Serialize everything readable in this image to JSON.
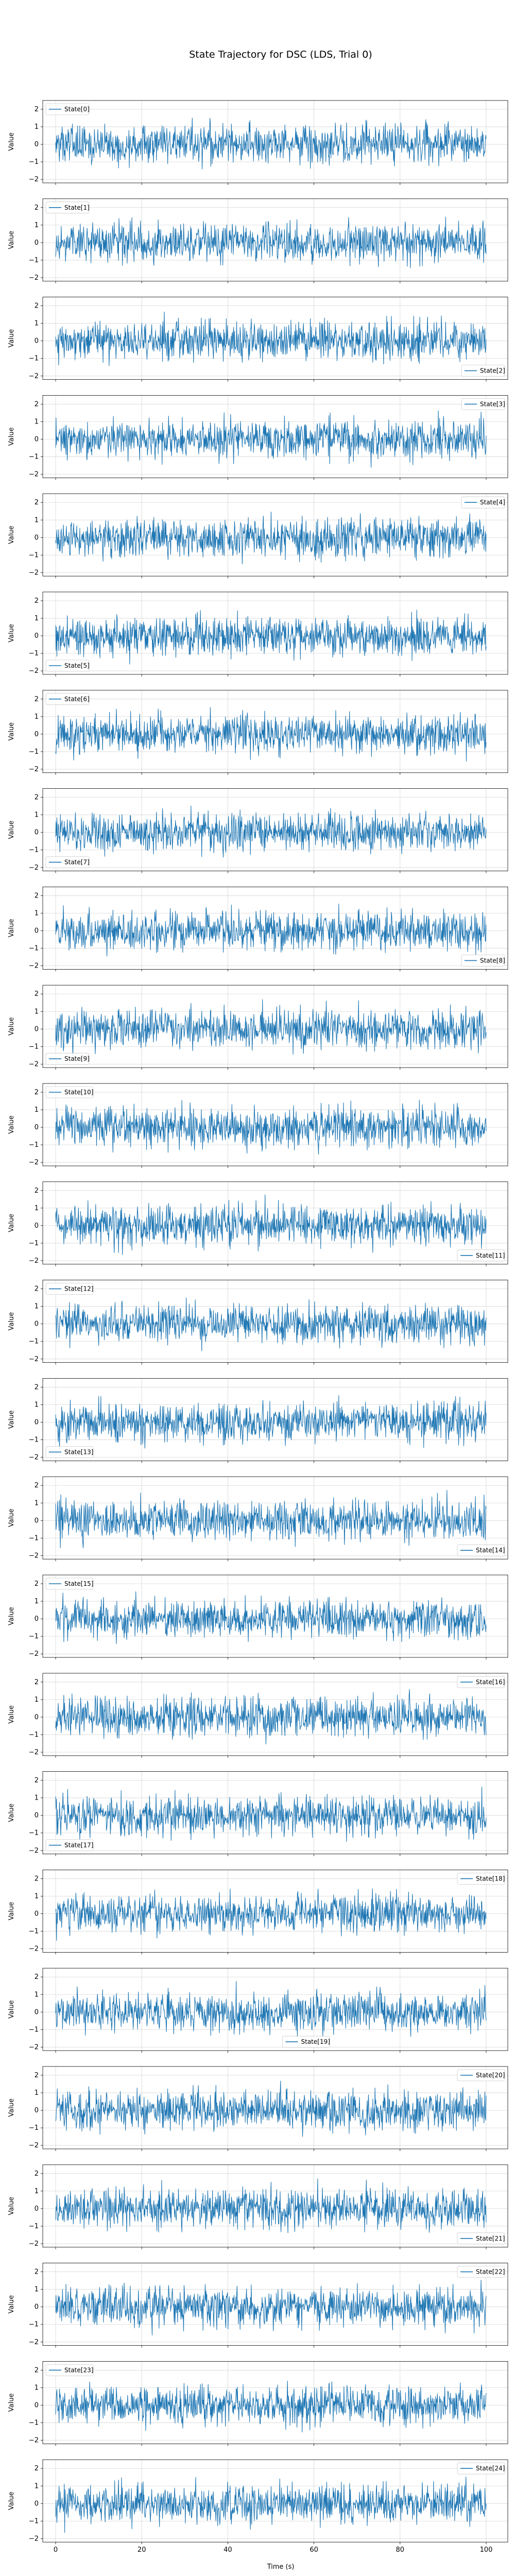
{
  "title": "State Trajectory for DSC (LDS, Trial 0)",
  "chart_data": {
    "type": "line",
    "layout": "25 vertically stacked subplots sharing the x-axis",
    "xlabel": "Time (s)",
    "ylabel": "Value",
    "xlim": [
      0,
      100
    ],
    "ylim": [
      -2.2,
      2.5
    ],
    "x_ticks": [
      0,
      20,
      40,
      60,
      80,
      100
    ],
    "y_ticks": [
      -2,
      -1,
      0,
      1,
      2
    ],
    "grid": true,
    "line_color": "#1f77b4",
    "samples_per_series": 1000,
    "series_description": "dense zero-mean noise, standard deviation about 0.55, spanning roughly -2 to 2",
    "series": [
      {
        "name": "State[0]",
        "legend_loc": "upper left"
      },
      {
        "name": "State[1]",
        "legend_loc": "upper left"
      },
      {
        "name": "State[2]",
        "legend_loc": "lower right"
      },
      {
        "name": "State[3]",
        "legend_loc": "upper right"
      },
      {
        "name": "State[4]",
        "legend_loc": "upper right"
      },
      {
        "name": "State[5]",
        "legend_loc": "lower left"
      },
      {
        "name": "State[6]",
        "legend_loc": "upper left"
      },
      {
        "name": "State[7]",
        "legend_loc": "lower left"
      },
      {
        "name": "State[8]",
        "legend_loc": "lower right"
      },
      {
        "name": "State[9]",
        "legend_loc": "lower left"
      },
      {
        "name": "State[10]",
        "legend_loc": "upper left"
      },
      {
        "name": "State[11]",
        "legend_loc": "lower right"
      },
      {
        "name": "State[12]",
        "legend_loc": "upper left"
      },
      {
        "name": "State[13]",
        "legend_loc": "lower left"
      },
      {
        "name": "State[14]",
        "legend_loc": "lower right"
      },
      {
        "name": "State[15]",
        "legend_loc": "upper left"
      },
      {
        "name": "State[16]",
        "legend_loc": "upper right"
      },
      {
        "name": "State[17]",
        "legend_loc": "lower left"
      },
      {
        "name": "State[18]",
        "legend_loc": "upper right"
      },
      {
        "name": "State[19]",
        "legend_loc": "lower center"
      },
      {
        "name": "State[20]",
        "legend_loc": "upper right"
      },
      {
        "name": "State[21]",
        "legend_loc": "lower right"
      },
      {
        "name": "State[22]",
        "legend_loc": "upper right"
      },
      {
        "name": "State[23]",
        "legend_loc": "upper left"
      },
      {
        "name": "State[24]",
        "legend_loc": "upper right"
      }
    ]
  }
}
